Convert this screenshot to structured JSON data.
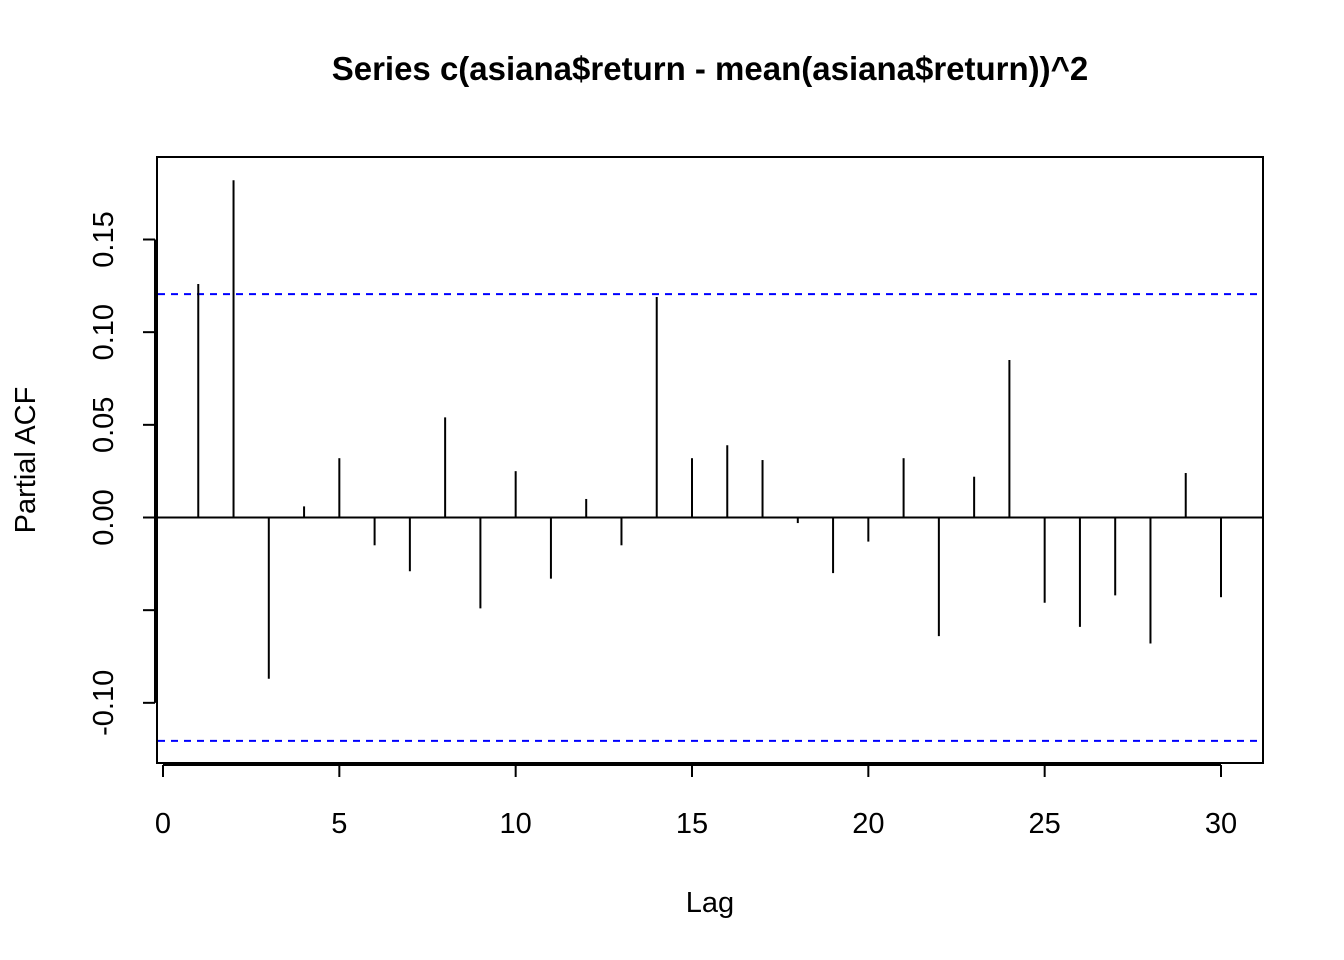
{
  "chart_data": {
    "type": "bar",
    "subtype": "pacf",
    "title": "Series  c(asiana$return - mean(asiana$return))^2",
    "xlabel": "Lag",
    "ylabel": "Partial ACF",
    "xlim": [
      0,
      30
    ],
    "ylim": [
      -0.12,
      0.18
    ],
    "x_ticks": [
      0,
      5,
      10,
      15,
      20,
      25,
      30
    ],
    "x_tick_labels": [
      "0",
      "5",
      "10",
      "15",
      "20",
      "25",
      "30"
    ],
    "y_ticks": [
      -0.1,
      -0.05,
      0.0,
      0.05,
      0.1,
      0.15
    ],
    "y_tick_labels": [
      "-0.10",
      "",
      "0.00",
      "0.05",
      "0.10",
      "0.15"
    ],
    "lags": [
      1,
      2,
      3,
      4,
      5,
      6,
      7,
      8,
      9,
      10,
      11,
      12,
      13,
      14,
      15,
      16,
      17,
      18,
      19,
      20,
      21,
      22,
      23,
      24,
      25,
      26,
      27,
      28,
      29,
      30
    ],
    "values": [
      0.126,
      0.182,
      -0.087,
      0.006,
      0.032,
      -0.015,
      -0.029,
      0.054,
      -0.049,
      0.025,
      -0.033,
      0.01,
      -0.015,
      0.119,
      0.032,
      0.039,
      0.031,
      -0.003,
      -0.03,
      -0.013,
      0.032,
      -0.064,
      0.022,
      0.085,
      -0.046,
      -0.059,
      -0.042,
      -0.068,
      0.024,
      -0.043
    ],
    "confidence_bounds": [
      0.1205,
      -0.1205
    ],
    "grid": false,
    "colors": {
      "bars": "#000000",
      "zero_line": "#000000",
      "confidence": "#0000ff",
      "frame": "#000000"
    }
  }
}
